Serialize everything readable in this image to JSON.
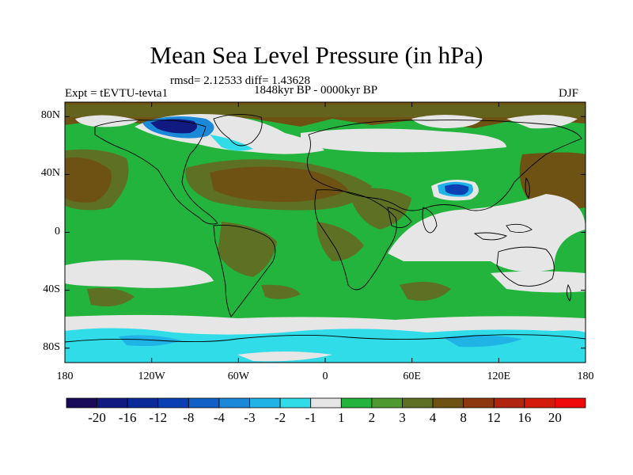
{
  "chart_data": {
    "type": "heatmap",
    "title": "Mean Sea Level Pressure (in hPa)",
    "stats_line": "rmsd= 2.12533 diff= 1.43628",
    "period": "1848kyr BP - 0000kyr BP",
    "experiment": "Expt = tEVTU-tevta1",
    "season": "DJF",
    "x_ticks": [
      "180",
      "120W",
      "60W",
      "0",
      "60E",
      "120E",
      "180"
    ],
    "y_ticks": [
      "80N",
      "40N",
      "0",
      "40S",
      "80S"
    ],
    "xlim": [
      -180,
      180
    ],
    "ylim": [
      -90,
      90
    ],
    "colorbar": {
      "labels": [
        "-20",
        "-16",
        "-12",
        "-8",
        "-4",
        "-3",
        "-2",
        "-1",
        "1",
        "2",
        "3",
        "4",
        "8",
        "12",
        "16",
        "20"
      ],
      "colors": [
        "#1a0a5a",
        "#101a80",
        "#0a2a9a",
        "#0a40b4",
        "#1060c8",
        "#1a8ad8",
        "#20b4e6",
        "#30dce8",
        "#e6e6e6",
        "#22b43c",
        "#4e9a2e",
        "#5e7024",
        "#6e5214",
        "#8e3810",
        "#b02410",
        "#d41a0a",
        "#f00a0a"
      ]
    }
  }
}
